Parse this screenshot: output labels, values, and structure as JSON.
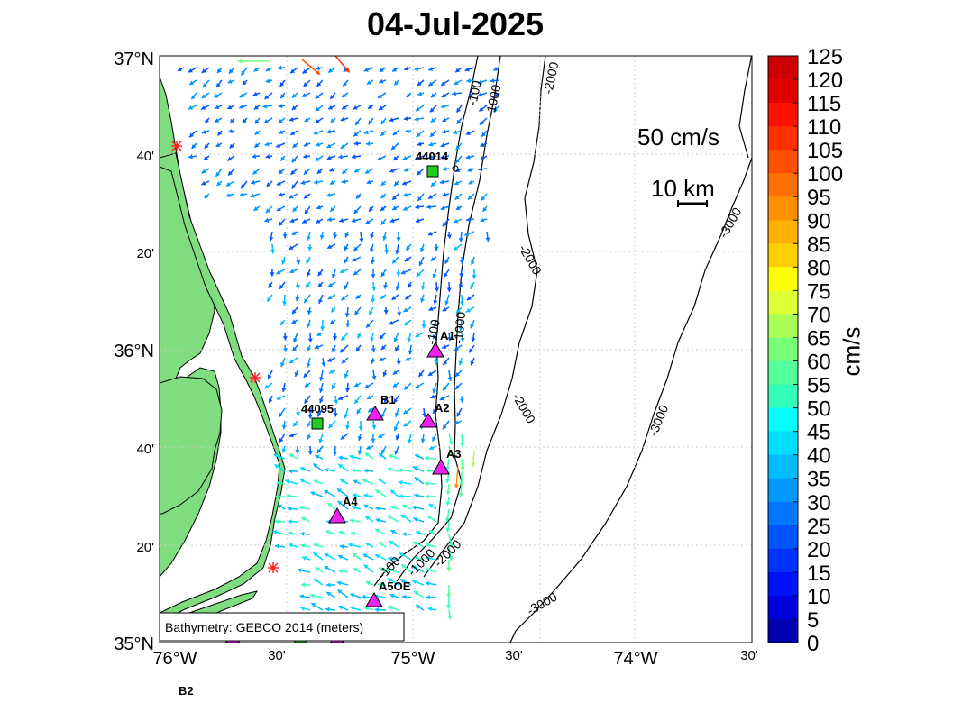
{
  "title": "04-Jul-2025",
  "map": {
    "lat_labels": [
      "37°N",
      "40'",
      "20'",
      "36°N",
      "40'",
      "20'",
      "35°N"
    ],
    "lon_labels": [
      "76°W",
      "30'",
      "75°W",
      "30'",
      "74°W",
      "30'"
    ],
    "bathymetry_note": "Bathymetry: GEBCO 2014 (meters)",
    "contour_labels": [
      "-100",
      "-1000",
      "-2000",
      "-2000",
      "-2000",
      "-3000",
      "-3000",
      "-3000",
      "-100",
      "-1000",
      "-2000",
      "-1000",
      "-100",
      "-2000",
      "-3000"
    ],
    "scale_speed_label": "50 cm/s",
    "scale_distance_label": "10 km",
    "stations": [
      {
        "id": "44014",
        "type": "buoy"
      },
      {
        "id": "44095",
        "type": "buoy"
      },
      {
        "id": "A1",
        "type": "mooring"
      },
      {
        "id": "A2",
        "type": "mooring"
      },
      {
        "id": "A3",
        "type": "mooring"
      },
      {
        "id": "A4",
        "type": "mooring"
      },
      {
        "id": "A5OE",
        "type": "mooring"
      },
      {
        "id": "B1",
        "type": "mooring"
      },
      {
        "id": "B2",
        "type": "mooring"
      }
    ],
    "colors": {
      "land": "#7fdc7f",
      "buoy": "#22cc22",
      "mooring": "#ee22ee",
      "site": "#ff2222"
    }
  },
  "colorbar": {
    "label": "cm/s",
    "ticks": [
      "125",
      "120",
      "115",
      "110",
      "105",
      "100",
      "95",
      "90",
      "85",
      "80",
      "75",
      "70",
      "65",
      "60",
      "55",
      "50",
      "45",
      "40",
      "35",
      "30",
      "25",
      "20",
      "15",
      "10",
      "5",
      "0"
    ],
    "colors": [
      "#cc0000",
      "#e00000",
      "#ff1000",
      "#ff3000",
      "#ff5000",
      "#ff7000",
      "#ff9000",
      "#ffb000",
      "#ffd000",
      "#ffff00",
      "#ddff33",
      "#aaff55",
      "#77ff77",
      "#55ff99",
      "#33ffbb",
      "#00ffff",
      "#00ddff",
      "#00bbff",
      "#0099ff",
      "#0077ff",
      "#0055ff",
      "#0033ff",
      "#0011ff",
      "#0000dd",
      "#0000b0"
    ]
  }
}
